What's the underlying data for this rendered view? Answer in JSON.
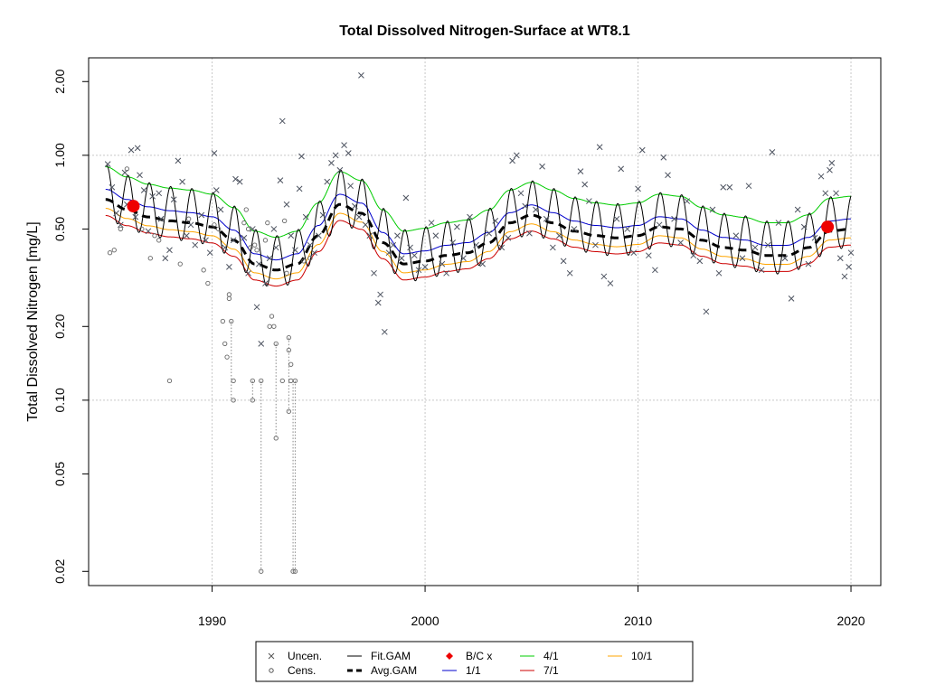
{
  "chart_data": {
    "type": "scatter",
    "title": "Total Dissolved Nitrogen-Surface at WT8.1",
    "xlabel": "",
    "ylabel": "Total Dissolved Nitrogen [mg/L]",
    "y_scale": "log",
    "xlim": [
      1984.2,
      2021.4
    ],
    "ylim": [
      0.0175,
      2.5
    ],
    "x_ticks": [
      1990,
      2000,
      2010,
      2020
    ],
    "x_tick_labels": [
      "1990",
      "2000",
      "2010",
      "2020"
    ],
    "y_ticks": [
      0.02,
      0.05,
      0.1,
      0.2,
      0.5,
      1.0,
      2.0
    ],
    "y_tick_labels": [
      "0.02",
      "0.05",
      "0.10",
      "0.20",
      "0.50",
      "1.00",
      "2.00"
    ],
    "grid": true,
    "legend_position": "bottom-center",
    "legend": [
      {
        "label": "Uncen.",
        "symbol": "x",
        "color": "#555555"
      },
      {
        "label": "Cens.",
        "symbol": "circle",
        "color": "#555555"
      },
      {
        "label": "Fit.GAM",
        "symbol": "line",
        "color": "#000000"
      },
      {
        "label": "Avg.GAM",
        "symbol": "dashed",
        "color": "#000000"
      },
      {
        "label": "B/C x",
        "symbol": "diamond",
        "color": "#ee0000"
      },
      {
        "label": "1/1",
        "symbol": "line",
        "color": "#0000cc"
      },
      {
        "label": "4/1",
        "symbol": "line",
        "color": "#00cc00"
      },
      {
        "label": "7/1",
        "symbol": "line",
        "color": "#cc0000"
      },
      {
        "label": "10/1",
        "symbol": "line",
        "color": "#ffa500"
      }
    ],
    "avg_gam": {
      "x": [
        1985.0,
        1986.0,
        1987.0,
        1988.0,
        1989.0,
        1990.0,
        1991.0,
        1992.0,
        1993.0,
        1994.0,
        1995.0,
        1996.0,
        1997.0,
        1998.0,
        1999.0,
        2000.0,
        2001.0,
        2002.0,
        2003.0,
        2004.0,
        2005.0,
        2006.0,
        2007.0,
        2008.0,
        2009.0,
        2010.0,
        2011.0,
        2012.0,
        2013.0,
        2014.0,
        2015.0,
        2016.0,
        2017.0,
        2018.0,
        2019.0,
        2020.0
      ],
      "y": [
        0.66,
        0.6,
        0.56,
        0.54,
        0.53,
        0.51,
        0.45,
        0.36,
        0.34,
        0.36,
        0.47,
        0.63,
        0.58,
        0.44,
        0.36,
        0.37,
        0.39,
        0.4,
        0.44,
        0.53,
        0.57,
        0.53,
        0.49,
        0.47,
        0.46,
        0.47,
        0.51,
        0.5,
        0.45,
        0.42,
        0.41,
        0.39,
        0.39,
        0.42,
        0.49,
        0.5
      ]
    },
    "series": [
      {
        "name": "4/1",
        "color": "#00cc00",
        "ratio": 1.36
      },
      {
        "name": "1/1",
        "color": "#0000cc",
        "ratio": 1.1
      },
      {
        "name": "10/1",
        "color": "#ffa500",
        "ratio": 0.92
      },
      {
        "name": "7/1",
        "color": "#cc0000",
        "ratio": 0.86
      }
    ],
    "fit_gam": {
      "name": "Fit.GAM",
      "color": "#000000",
      "high_ratio": 1.38,
      "low_ratio": 0.84
    },
    "bc_points": [
      {
        "x": 1986.3,
        "y": 0.62,
        "color": "#ee0000"
      },
      {
        "x": 2018.9,
        "y": 0.51,
        "color": "#ee0000"
      }
    ],
    "uncensored": [
      [
        1985.1,
        0.92
      ],
      [
        1985.3,
        0.74
      ],
      [
        1985.5,
        0.58
      ],
      [
        1985.7,
        0.52
      ],
      [
        1985.9,
        0.85
      ],
      [
        1986.0,
        0.63
      ],
      [
        1986.2,
        1.05
      ],
      [
        1986.4,
        0.56
      ],
      [
        1986.5,
        1.07
      ],
      [
        1986.6,
        0.83
      ],
      [
        1986.8,
        0.72
      ],
      [
        1987.0,
        0.49
      ],
      [
        1987.2,
        0.68
      ],
      [
        1987.5,
        0.7
      ],
      [
        1987.6,
        0.55
      ],
      [
        1987.8,
        0.38
      ],
      [
        1988.0,
        0.41
      ],
      [
        1988.2,
        0.66
      ],
      [
        1988.4,
        0.95
      ],
      [
        1988.6,
        0.78
      ],
      [
        1988.8,
        0.47
      ],
      [
        1989.0,
        0.52
      ],
      [
        1989.2,
        0.43
      ],
      [
        1989.5,
        0.57
      ],
      [
        1989.7,
        0.45
      ],
      [
        1989.9,
        0.4
      ],
      [
        1990.1,
        1.02
      ],
      [
        1990.2,
        0.72
      ],
      [
        1990.4,
        0.6
      ],
      [
        1990.6,
        0.42
      ],
      [
        1990.8,
        0.35
      ],
      [
        1991.0,
        0.45
      ],
      [
        1991.1,
        0.8
      ],
      [
        1991.3,
        0.78
      ],
      [
        1991.5,
        0.46
      ],
      [
        1991.7,
        0.33
      ],
      [
        1991.9,
        0.5
      ],
      [
        1992.1,
        0.24
      ],
      [
        1992.2,
        0.36
      ],
      [
        1992.3,
        0.17
      ],
      [
        1992.5,
        0.3
      ],
      [
        1992.7,
        0.38
      ],
      [
        1992.9,
        0.5
      ],
      [
        1993.0,
        0.42
      ],
      [
        1993.2,
        0.79
      ],
      [
        1993.3,
        1.38
      ],
      [
        1993.5,
        0.63
      ],
      [
        1993.7,
        0.47
      ],
      [
        1993.9,
        0.41
      ],
      [
        1994.1,
        0.73
      ],
      [
        1994.2,
        0.99
      ],
      [
        1994.4,
        0.56
      ],
      [
        1994.6,
        0.43
      ],
      [
        1994.8,
        0.4
      ],
      [
        1995.0,
        0.47
      ],
      [
        1995.2,
        0.57
      ],
      [
        1995.4,
        0.78
      ],
      [
        1995.6,
        0.93
      ],
      [
        1995.8,
        1.0
      ],
      [
        1996.0,
        0.87
      ],
      [
        1996.2,
        1.1
      ],
      [
        1996.4,
        1.02
      ],
      [
        1996.5,
        0.75
      ],
      [
        1996.7,
        0.62
      ],
      [
        1996.9,
        0.56
      ],
      [
        1997.0,
        2.12
      ],
      [
        1997.2,
        0.52
      ],
      [
        1997.4,
        0.47
      ],
      [
        1997.6,
        0.33
      ],
      [
        1997.8,
        0.25
      ],
      [
        1997.9,
        0.27
      ],
      [
        1998.1,
        0.19
      ],
      [
        1998.3,
        0.4
      ],
      [
        1998.5,
        0.43
      ],
      [
        1998.7,
        0.47
      ],
      [
        1998.9,
        0.38
      ],
      [
        1999.1,
        0.67
      ],
      [
        1999.3,
        0.42
      ],
      [
        1999.5,
        0.39
      ],
      [
        1999.7,
        0.34
      ],
      [
        2000.0,
        0.35
      ],
      [
        2000.3,
        0.53
      ],
      [
        2000.5,
        0.47
      ],
      [
        2000.8,
        0.36
      ],
      [
        2001.0,
        0.33
      ],
      [
        2001.3,
        0.44
      ],
      [
        2001.5,
        0.51
      ],
      [
        2001.8,
        0.38
      ],
      [
        2002.1,
        0.56
      ],
      [
        2002.4,
        0.43
      ],
      [
        2002.7,
        0.36
      ],
      [
        2003.0,
        0.48
      ],
      [
        2003.3,
        0.54
      ],
      [
        2003.6,
        0.42
      ],
      [
        2003.9,
        0.46
      ],
      [
        2004.1,
        0.95
      ],
      [
        2004.3,
        1.0
      ],
      [
        2004.5,
        0.7
      ],
      [
        2004.7,
        0.62
      ],
      [
        2004.9,
        0.48
      ],
      [
        2005.2,
        0.6
      ],
      [
        2005.5,
        0.9
      ],
      [
        2005.7,
        0.55
      ],
      [
        2006.0,
        0.42
      ],
      [
        2006.3,
        0.47
      ],
      [
        2006.5,
        0.37
      ],
      [
        2006.8,
        0.33
      ],
      [
        2007.0,
        0.5
      ],
      [
        2007.3,
        0.86
      ],
      [
        2007.5,
        0.76
      ],
      [
        2007.7,
        0.65
      ],
      [
        2008.0,
        0.43
      ],
      [
        2008.2,
        1.08
      ],
      [
        2008.4,
        0.32
      ],
      [
        2008.7,
        0.3
      ],
      [
        2009.0,
        0.55
      ],
      [
        2009.2,
        0.88
      ],
      [
        2009.5,
        0.5
      ],
      [
        2009.8,
        0.4
      ],
      [
        2010.0,
        0.73
      ],
      [
        2010.2,
        1.05
      ],
      [
        2010.5,
        0.39
      ],
      [
        2010.8,
        0.34
      ],
      [
        2011.0,
        0.52
      ],
      [
        2011.2,
        0.98
      ],
      [
        2011.4,
        0.83
      ],
      [
        2011.7,
        0.55
      ],
      [
        2012.0,
        0.44
      ],
      [
        2012.3,
        0.65
      ],
      [
        2012.6,
        0.39
      ],
      [
        2012.9,
        0.37
      ],
      [
        2013.2,
        0.23
      ],
      [
        2013.5,
        0.6
      ],
      [
        2013.8,
        0.33
      ],
      [
        2014.0,
        0.74
      ],
      [
        2014.3,
        0.74
      ],
      [
        2014.6,
        0.47
      ],
      [
        2014.9,
        0.38
      ],
      [
        2015.2,
        0.75
      ],
      [
        2015.5,
        0.42
      ],
      [
        2015.8,
        0.34
      ],
      [
        2016.1,
        0.43
      ],
      [
        2016.3,
        1.03
      ],
      [
        2016.6,
        0.53
      ],
      [
        2016.9,
        0.38
      ],
      [
        2017.2,
        0.26
      ],
      [
        2017.5,
        0.6
      ],
      [
        2017.8,
        0.51
      ],
      [
        2018.0,
        0.36
      ],
      [
        2018.3,
        0.46
      ],
      [
        2018.6,
        0.82
      ],
      [
        2018.8,
        0.7
      ],
      [
        2019.0,
        0.87
      ],
      [
        2019.1,
        0.93
      ],
      [
        2019.3,
        0.7
      ],
      [
        2019.5,
        0.38
      ],
      [
        2019.7,
        0.32
      ],
      [
        2019.9,
        0.35
      ],
      [
        2020.0,
        0.4
      ]
    ],
    "censored": [
      [
        1985.2,
        0.4
      ],
      [
        1985.4,
        0.41
      ],
      [
        1985.7,
        0.5
      ],
      [
        1986.0,
        0.88
      ],
      [
        1986.7,
        0.5
      ],
      [
        1987.1,
        0.38
      ],
      [
        1987.3,
        0.47
      ],
      [
        1987.5,
        0.45
      ],
      [
        1988.0,
        0.12
      ],
      [
        1988.5,
        0.36
      ],
      [
        1988.9,
        0.55
      ],
      [
        1989.6,
        0.34
      ],
      [
        1989.8,
        0.3
      ],
      [
        1990.1,
        0.52
      ],
      [
        1990.3,
        0.5
      ],
      [
        1990.5,
        0.21
      ],
      [
        1990.6,
        0.17
      ],
      [
        1990.7,
        0.15
      ],
      [
        1990.8,
        0.26
      ],
      [
        1990.8,
        0.27
      ],
      [
        1990.9,
        0.21
      ],
      [
        1991.0,
        0.12
      ],
      [
        1991.0,
        0.1
      ],
      [
        1991.5,
        0.53
      ],
      [
        1991.6,
        0.6
      ],
      [
        1991.7,
        0.5
      ],
      [
        1991.8,
        0.42
      ],
      [
        1991.9,
        0.12
      ],
      [
        1991.9,
        0.1
      ],
      [
        1992.0,
        0.43
      ],
      [
        1992.1,
        0.41
      ],
      [
        1992.3,
        0.12
      ],
      [
        1992.3,
        0.02
      ],
      [
        1992.5,
        0.45
      ],
      [
        1992.6,
        0.53
      ],
      [
        1992.7,
        0.2
      ],
      [
        1992.8,
        0.22
      ],
      [
        1992.9,
        0.2
      ],
      [
        1993.0,
        0.17
      ],
      [
        1993.0,
        0.07
      ],
      [
        1993.3,
        0.12
      ],
      [
        1993.4,
        0.54
      ],
      [
        1993.5,
        0.33
      ],
      [
        1993.6,
        0.18
      ],
      [
        1993.6,
        0.16
      ],
      [
        1993.7,
        0.14
      ],
      [
        1993.7,
        0.12
      ],
      [
        1993.6,
        0.09
      ],
      [
        1993.8,
        0.02
      ],
      [
        1993.9,
        0.12
      ],
      [
        1993.9,
        0.02
      ],
      [
        1994.3,
        0.37
      ],
      [
        1994.6,
        0.38
      ]
    ],
    "censored_links": [
      [
        1992.3,
        0.12,
        0.02
      ],
      [
        1993.0,
        0.17,
        0.07
      ],
      [
        1993.6,
        0.18,
        0.09
      ],
      [
        1993.8,
        0.12,
        0.02
      ],
      [
        1993.9,
        0.12,
        0.02
      ],
      [
        1990.9,
        0.21,
        0.1
      ],
      [
        1991.9,
        0.12,
        0.1
      ]
    ]
  }
}
